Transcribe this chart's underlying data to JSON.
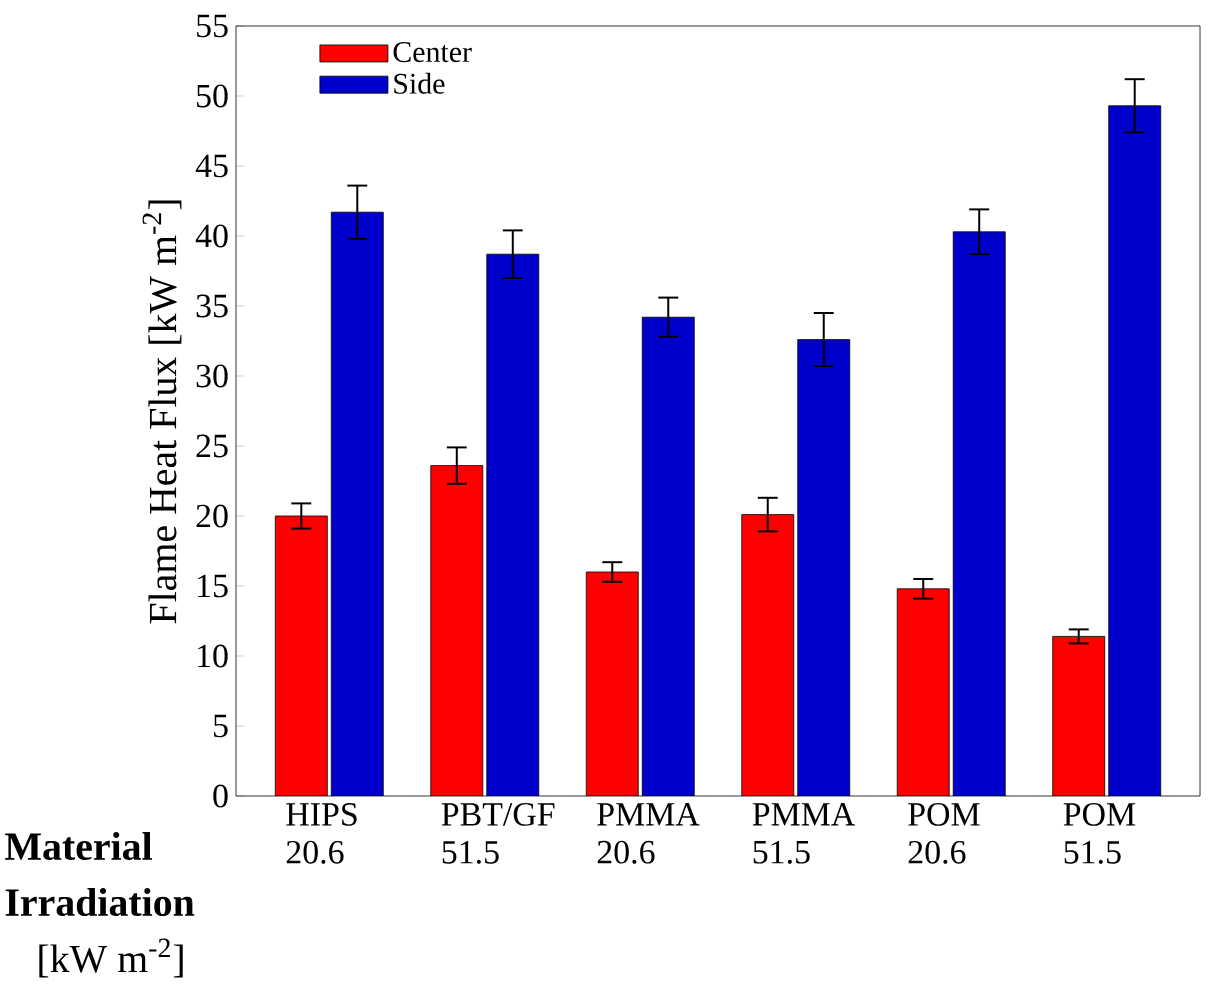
{
  "chart_data": {
    "type": "bar",
    "ylabel": "Flame Heat Flux [kW m$^{-2}$]",
    "categories": [
      "HIPS 20.6",
      "PBT/GF 51.5",
      "PMMA 20.6",
      "PMMA 51.5",
      "POM 20.6",
      "POM 51.5"
    ],
    "series": [
      {
        "name": "Center",
        "color": "#ff0000",
        "values": [
          20.0,
          23.6,
          16.0,
          20.1,
          14.8,
          11.4
        ],
        "errors": [
          0.9,
          1.3,
          0.7,
          1.2,
          0.7,
          0.5
        ]
      },
      {
        "name": "Side",
        "color": "#0000cc",
        "values": [
          41.7,
          38.7,
          34.2,
          32.6,
          40.3,
          49.3
        ],
        "errors": [
          1.9,
          1.7,
          1.4,
          1.9,
          1.6,
          1.9
        ]
      }
    ],
    "ylim": [
      0,
      55
    ],
    "yticks": [
      0,
      5,
      10,
      15,
      20,
      25,
      30,
      35,
      40,
      45,
      50,
      55
    ],
    "legend": "top left",
    "grid": false,
    "annotations": [
      "**Material**",
      "**Irradiation**",
      "[kW m$^{-2}$]"
    ]
  }
}
